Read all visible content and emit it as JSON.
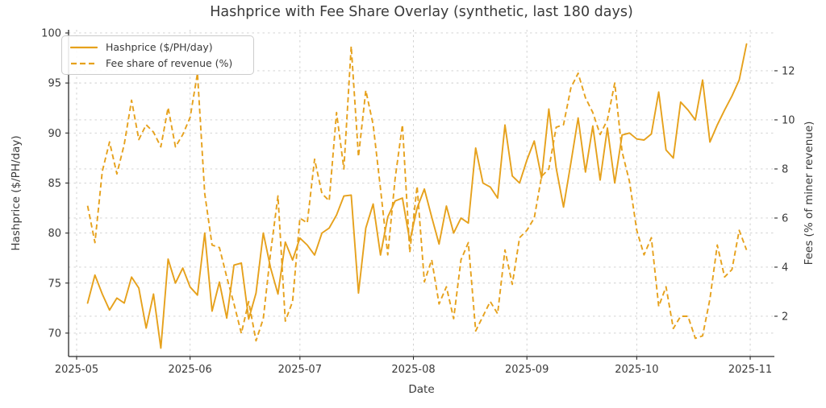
{
  "chart_data": {
    "type": "line",
    "title": "Hashprice with Fee Share Overlay (synthetic, last 180 days)",
    "xlabel": "Date",
    "ylabel_left": "Hashprice ($/PH/day)",
    "ylabel_right": "Fees (% of miner revenue)",
    "x_tick_labels": [
      "2025-05",
      "2025-06",
      "2025-07",
      "2025-08",
      "2025-09",
      "2025-10",
      "2025-11"
    ],
    "x_tick_days": [
      0,
      31,
      61,
      92,
      123,
      153,
      184
    ],
    "x_day_reference": "day 0 = 2025-05-01",
    "xlim_days": [
      -2.2,
      190.6
    ],
    "y_left_ticks": [
      70,
      75,
      80,
      85,
      90,
      95,
      100
    ],
    "y_right_ticks": [
      2,
      4,
      6,
      8,
      10,
      12
    ],
    "ylim_left": [
      67.66,
      100.32
    ],
    "ylim_right": [
      0.36,
      13.67
    ],
    "grid": true,
    "legend_position": "upper left",
    "colors": {
      "line": "#E6A11C",
      "grid": "#cdcdcd",
      "spine": "#2b2b2b",
      "text": "#3a3a3a",
      "background": "#ffffff"
    },
    "series": [
      {
        "name": "Hashprice ($/PH/day)",
        "axis": "left",
        "line_style": "solid",
        "color": "#E6A11C",
        "days": [
          3,
          5,
          7,
          9,
          11,
          13,
          15,
          17,
          19,
          21,
          23,
          25,
          27,
          29,
          31,
          33,
          35,
          37,
          39,
          41,
          43,
          45,
          47,
          49,
          51,
          53,
          55,
          57,
          59,
          61,
          63,
          65,
          67,
          69,
          71,
          73,
          75,
          77,
          79,
          81,
          83,
          85,
          87,
          89,
          91,
          93,
          95,
          97,
          99,
          101,
          103,
          105,
          107,
          109,
          111,
          113,
          115,
          117,
          119,
          121,
          123,
          125,
          127,
          129,
          131,
          133,
          135,
          137,
          139,
          141,
          143,
          145,
          147,
          149,
          151,
          153,
          155,
          157,
          159,
          161,
          163,
          165,
          167,
          169,
          171,
          173,
          175,
          177,
          179,
          181,
          183
        ],
        "values": [
          73.0,
          75.8,
          73.9,
          72.3,
          73.5,
          73.0,
          75.6,
          74.5,
          70.5,
          73.9,
          68.5,
          77.4,
          75.0,
          76.5,
          74.6,
          73.8,
          80.0,
          72.2,
          75.1,
          71.5,
          76.8,
          77.0,
          71.4,
          74.0,
          80.0,
          76.5,
          73.9,
          79.1,
          77.3,
          79.5,
          78.8,
          77.8,
          80.0,
          80.5,
          81.8,
          83.7,
          83.8,
          74.0,
          80.5,
          82.9,
          77.8,
          81.6,
          83.2,
          83.5,
          79.2,
          82.5,
          84.4,
          81.6,
          78.9,
          82.7,
          80.0,
          81.5,
          81.0,
          88.5,
          85.0,
          84.6,
          83.5,
          90.8,
          85.7,
          85.0,
          87.3,
          89.2,
          85.5,
          92.4,
          86.5,
          82.6,
          87.0,
          91.5,
          86.1,
          90.7,
          85.3,
          90.5,
          85.0,
          89.8,
          90.0,
          89.4,
          89.3,
          89.9,
          94.1,
          88.3,
          87.5,
          93.1,
          92.3,
          91.3,
          95.3,
          89.1,
          90.8,
          92.3,
          93.7,
          95.3,
          98.9
        ]
      },
      {
        "name": "Fee share of revenue (%)",
        "axis": "right",
        "line_style": "dashed",
        "color": "#E6A11C",
        "days": [
          3,
          5,
          7,
          9,
          11,
          13,
          15,
          17,
          19,
          21,
          23,
          25,
          27,
          29,
          31,
          33,
          35,
          37,
          39,
          41,
          43,
          45,
          47,
          49,
          51,
          53,
          55,
          57,
          59,
          61,
          63,
          65,
          67,
          69,
          71,
          73,
          75,
          77,
          79,
          81,
          83,
          85,
          87,
          89,
          91,
          93,
          95,
          97,
          99,
          101,
          103,
          105,
          107,
          109,
          111,
          113,
          115,
          117,
          119,
          121,
          123,
          125,
          127,
          129,
          131,
          133,
          135,
          137,
          139,
          141,
          143,
          145,
          147,
          149,
          151,
          153,
          155,
          157,
          159,
          161,
          163,
          165,
          167,
          169,
          171,
          173,
          175,
          177,
          179,
          181,
          183
        ],
        "values": [
          6.5,
          5.0,
          7.9,
          9.1,
          7.8,
          9.0,
          10.8,
          9.2,
          9.8,
          9.5,
          8.9,
          10.5,
          8.9,
          9.4,
          10.1,
          11.9,
          7.0,
          4.9,
          4.8,
          3.6,
          2.5,
          1.3,
          2.6,
          1.0,
          1.9,
          4.6,
          6.9,
          1.8,
          2.6,
          6.0,
          5.8,
          8.4,
          7.0,
          6.7,
          10.3,
          8.0,
          13.0,
          8.5,
          11.2,
          9.8,
          7.2,
          4.5,
          7.6,
          9.8,
          4.6,
          7.3,
          3.4,
          4.3,
          2.5,
          3.2,
          1.9,
          4.3,
          5.0,
          1.4,
          2.0,
          2.6,
          2.1,
          4.7,
          3.3,
          5.2,
          5.5,
          6.0,
          7.7,
          8.0,
          9.7,
          9.8,
          11.3,
          11.9,
          10.9,
          10.3,
          9.4,
          10.0,
          11.5,
          8.7,
          7.5,
          5.5,
          4.5,
          5.2,
          2.4,
          3.2,
          1.5,
          2.0,
          2.0,
          1.1,
          1.2,
          2.7,
          4.9,
          3.6,
          3.9,
          5.5,
          4.7
        ]
      }
    ]
  }
}
